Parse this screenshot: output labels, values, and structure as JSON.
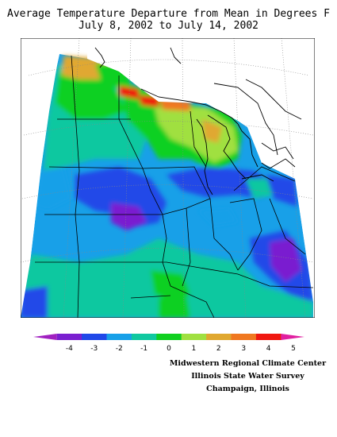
{
  "title": {
    "line1": "Average Temperature Departure from Mean in Degrees F",
    "line2": "July 8, 2002 to July 14, 2002"
  },
  "legend": {
    "bins": [
      {
        "color": "#a020c0"
      },
      {
        "color": "#7a1fd0"
      },
      {
        "color": "#2048e8"
      },
      {
        "color": "#18a0e8"
      },
      {
        "color": "#10c8a0"
      },
      {
        "color": "#10d020"
      },
      {
        "color": "#a0e040"
      },
      {
        "color": "#e0a830"
      },
      {
        "color": "#f07820"
      },
      {
        "color": "#f01810"
      },
      {
        "color": "#e020a0"
      }
    ],
    "ticks": [
      "-4",
      "-3",
      "-2",
      "-1",
      "0",
      "1",
      "2",
      "3",
      "4",
      "5"
    ]
  },
  "credits": {
    "line1": "Midwestern Regional Climate Center",
    "line2": "Illinois State Water Survey",
    "line3": "Champaign, Illinois"
  }
}
